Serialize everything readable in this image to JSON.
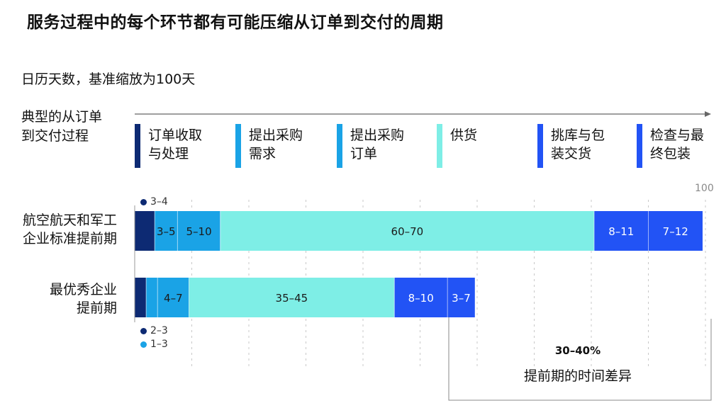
{
  "title": "服务过程中的每个环节都有可能压缩从订单到交付的周期",
  "subtitle": "日历天数，基准缩放为100天",
  "process_label": {
    "line1": "典型的从订单",
    "line2": "到交付过程"
  },
  "stages": [
    {
      "line1": "订单收取",
      "line2": "与处理",
      "color": "#0d2a73"
    },
    {
      "line1": "提出采购",
      "line2": "需求",
      "color": "#1aa3e6"
    },
    {
      "line1": "提出采购",
      "line2": "订单",
      "color": "#1aa3e6"
    },
    {
      "line1": "供货",
      "line2": "",
      "color": "#7eeee6"
    },
    {
      "line1": "挑库与包",
      "line2": "装交货",
      "color": "#2253f5"
    },
    {
      "line1": "检查与最",
      "line2": "终包装",
      "color": "#2253f5"
    }
  ],
  "row_labels": [
    {
      "line1": "航空航天和军工",
      "line2": "企业标准提前期"
    },
    {
      "line1": "最优秀企业",
      "line2": "提前期"
    }
  ],
  "legend": {
    "top": [
      {
        "label": "3–4",
        "color": "#0d2a73"
      }
    ],
    "bottom": [
      {
        "label": "2–3",
        "color": "#0d2a73"
      },
      {
        "label": "1–3",
        "color": "#1aa3e6"
      }
    ]
  },
  "callout": {
    "value": "30–40%",
    "text": "提前期的时间差异"
  },
  "chart_data": {
    "type": "bar",
    "orientation": "horizontal",
    "stacked": true,
    "title": "服务过程中的每个环节都有可能压缩从订单到交付的周期",
    "subtitle": "日历天数，基准缩放为100天",
    "xlim": [
      0,
      100
    ],
    "max_label": "100",
    "stage_colors": [
      "#0d2a73",
      "#1aa3e6",
      "#1aa3e6",
      "#7eeee6",
      "#2253f5",
      "#2253f5"
    ],
    "segment_text_color": [
      "#ffffff",
      "#1a1a1a",
      "#1a1a1a",
      "#1a1a1a",
      "#ffffff",
      "#ffffff"
    ],
    "rows": [
      {
        "category": "航空航天和军工企业标准提前期",
        "values": [
          3.5,
          4,
          7.5,
          65.5,
          9.5,
          9.5
        ],
        "labels": [
          "",
          "3–5",
          "5–10",
          "60–70",
          "8–11",
          "7–12"
        ]
      },
      {
        "category": "最优秀企业提前期",
        "values": [
          2,
          2,
          5.5,
          36,
          9.3,
          4.8
        ],
        "labels": [
          "",
          "",
          "4–7",
          "35–45",
          "8–10",
          "3–7"
        ]
      }
    ]
  }
}
